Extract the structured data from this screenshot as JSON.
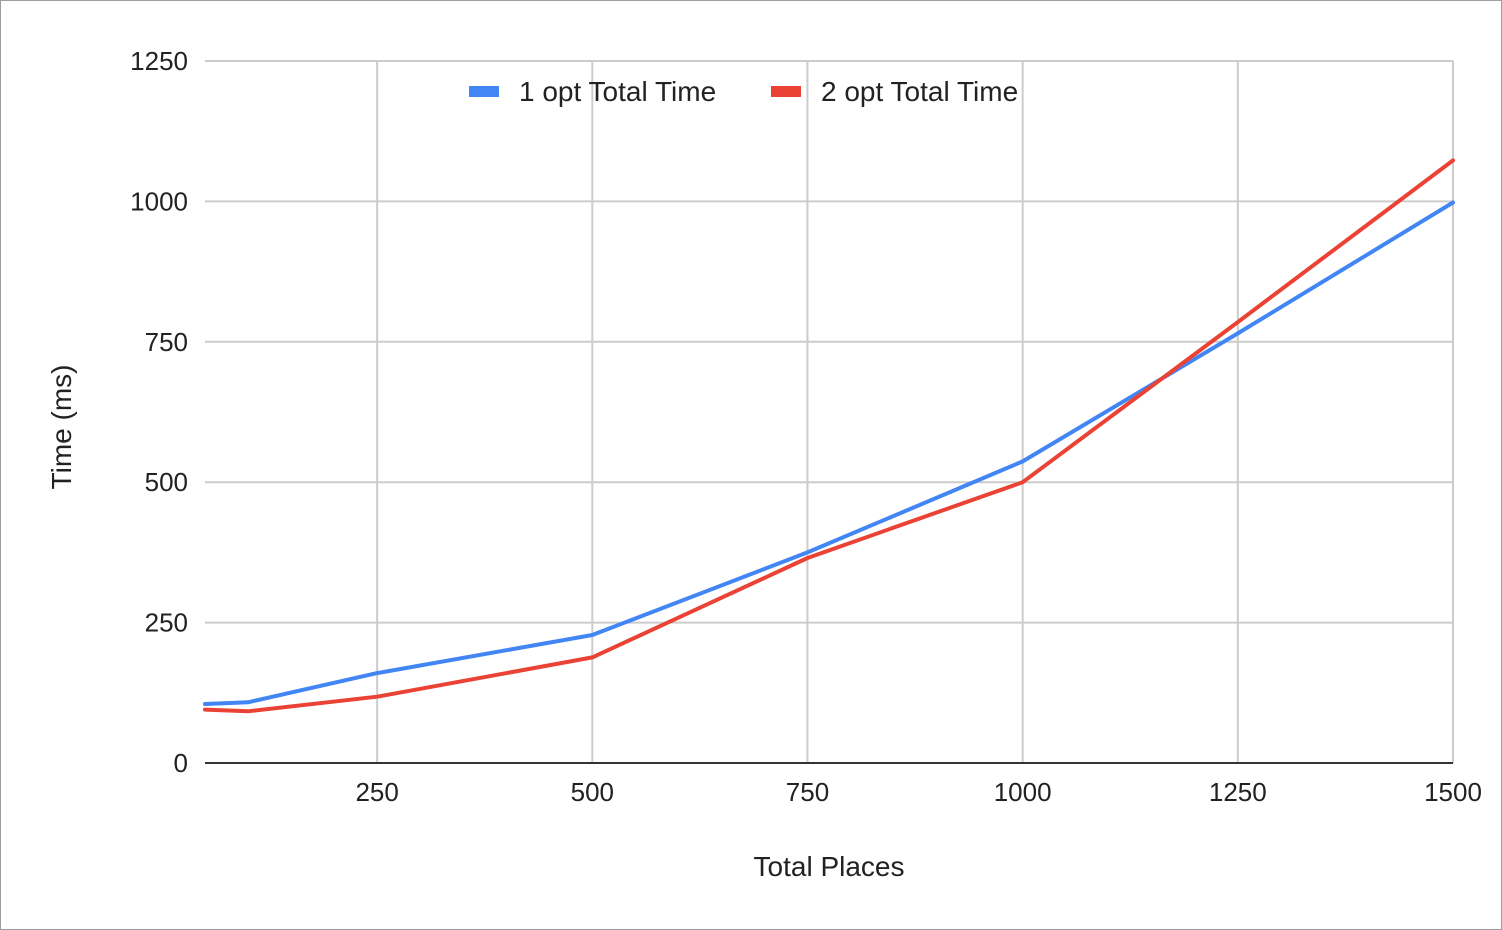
{
  "chart_data": {
    "type": "line",
    "title": "",
    "xlabel": "Total Places",
    "ylabel": "Time (ms)",
    "xlim": [
      50,
      1500
    ],
    "ylim": [
      0,
      1250
    ],
    "x_ticks": [
      250,
      500,
      750,
      1000,
      1250,
      1500
    ],
    "y_ticks": [
      0,
      250,
      500,
      750,
      1000,
      1250
    ],
    "x_tick_labels": [
      "250",
      "500",
      "750",
      "1000",
      "1250",
      "1500"
    ],
    "y_tick_labels": [
      "0",
      "250",
      "500",
      "750",
      "1000",
      "1250"
    ],
    "grid": true,
    "legend_position": "top",
    "series": [
      {
        "name": "1 opt Total Time",
        "color": "#4285f4",
        "x": [
          50,
          100,
          250,
          500,
          750,
          1000,
          1250,
          1500
        ],
        "y": [
          105,
          108,
          160,
          228,
          375,
          537,
          765,
          998
        ]
      },
      {
        "name": "2 opt Total Time",
        "color": "#ea4335",
        "x": [
          50,
          100,
          250,
          500,
          750,
          1000,
          1250,
          1500
        ],
        "y": [
          95,
          92,
          118,
          188,
          365,
          500,
          785,
          1073
        ]
      }
    ]
  }
}
